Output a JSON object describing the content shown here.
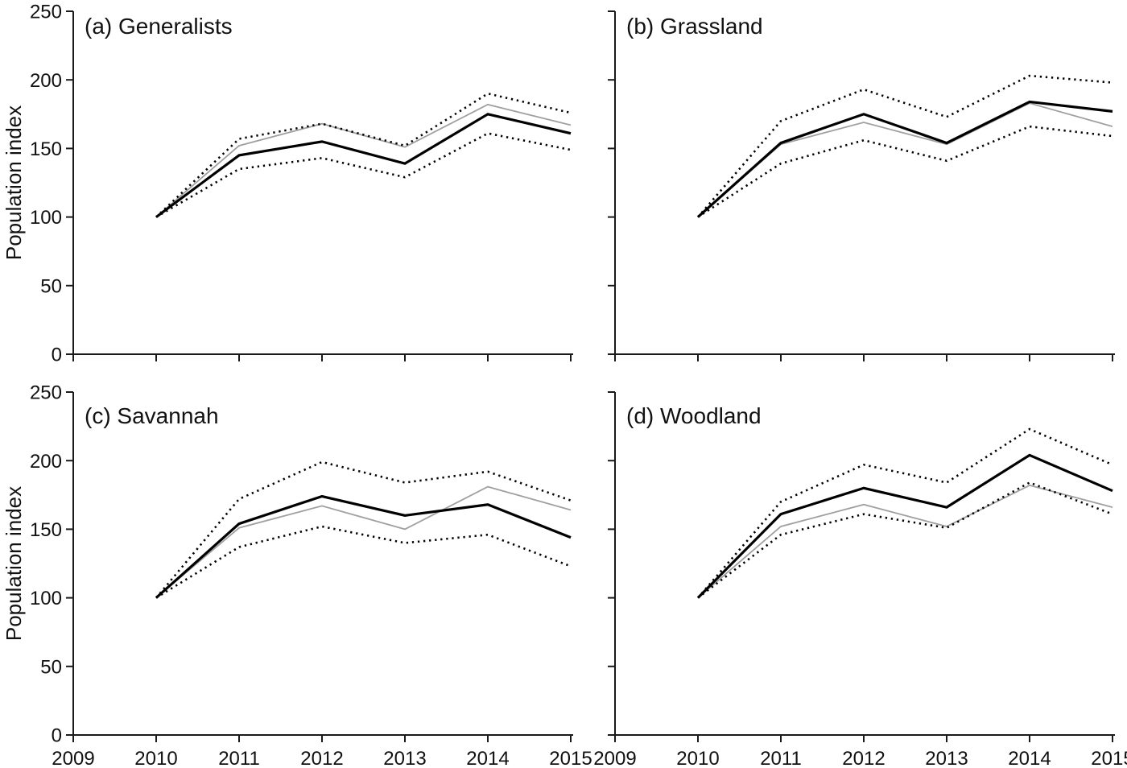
{
  "figure": {
    "background": "#ffffff",
    "axis_color": "#1a1a1a",
    "text_color": "#111111"
  },
  "chart_data": {
    "type": "line",
    "layout": "2x2-panels",
    "ylabel": "Population index",
    "xlabel": "",
    "x": [
      2010,
      2011,
      2012,
      2013,
      2014,
      2015
    ],
    "x_axis_ticks": [
      2009,
      2010,
      2011,
      2012,
      2013,
      2014,
      2015
    ],
    "y_axis_ticks": [
      0,
      50,
      100,
      150,
      200,
      250
    ],
    "xlim": [
      2009,
      2015
    ],
    "ylim": [
      0,
      250
    ],
    "grid": false,
    "legend": "none",
    "line_styles": {
      "solid-black": {
        "stroke": "#000000",
        "description": "thick solid black index line"
      },
      "solid-gray": {
        "stroke": "#a0a0a0",
        "description": "thin solid gray comparison line"
      },
      "dotted-black": {
        "stroke": "#000000",
        "description": "dotted black confidence-limit line"
      }
    },
    "panels": [
      {
        "id": "a",
        "title": "(a) Generalists",
        "series": [
          {
            "name": "population-index",
            "style": "solid-black",
            "values": [
              100,
              145,
              155,
              139,
              175,
              161
            ]
          },
          {
            "name": "comparison-index",
            "style": "solid-gray",
            "values": [
              100,
              152,
              168,
              151,
              182,
              167
            ]
          },
          {
            "name": "upper-confidence-limit",
            "style": "dotted-black",
            "values": [
              100,
              157,
              168,
              152,
              190,
              176
            ]
          },
          {
            "name": "lower-confidence-limit",
            "style": "dotted-black",
            "values": [
              100,
              135,
              143,
              129,
              161,
              149
            ]
          }
        ]
      },
      {
        "id": "b",
        "title": "(b) Grassland",
        "series": [
          {
            "name": "population-index",
            "style": "solid-black",
            "values": [
              100,
              154,
              175,
              154,
              184,
              177
            ]
          },
          {
            "name": "comparison-index",
            "style": "solid-gray",
            "values": [
              100,
              153,
              169,
              153,
              183,
              166
            ]
          },
          {
            "name": "upper-confidence-limit",
            "style": "dotted-black",
            "values": [
              100,
              170,
              193,
              173,
              203,
              198
            ]
          },
          {
            "name": "lower-confidence-limit",
            "style": "dotted-black",
            "values": [
              100,
              139,
              156,
              141,
              166,
              159
            ]
          }
        ]
      },
      {
        "id": "c",
        "title": "(c) Savannah",
        "series": [
          {
            "name": "population-index",
            "style": "solid-black",
            "values": [
              100,
              154,
              174,
              160,
              168,
              144
            ]
          },
          {
            "name": "comparison-index",
            "style": "solid-gray",
            "values": [
              100,
              151,
              167,
              150,
              181,
              164
            ]
          },
          {
            "name": "upper-confidence-limit",
            "style": "dotted-black",
            "values": [
              100,
              172,
              199,
              184,
              192,
              171
            ]
          },
          {
            "name": "lower-confidence-limit",
            "style": "dotted-black",
            "values": [
              100,
              137,
              152,
              140,
              146,
              123
            ]
          }
        ]
      },
      {
        "id": "d",
        "title": "(d) Woodland",
        "series": [
          {
            "name": "population-index",
            "style": "solid-black",
            "values": [
              100,
              161,
              180,
              166,
              204,
              178
            ]
          },
          {
            "name": "comparison-index",
            "style": "solid-gray",
            "values": [
              100,
              152,
              168,
              152,
              182,
              166
            ]
          },
          {
            "name": "upper-confidence-limit",
            "style": "dotted-black",
            "values": [
              100,
              170,
              197,
              184,
              223,
              197
            ]
          },
          {
            "name": "lower-confidence-limit",
            "style": "dotted-black",
            "values": [
              100,
              146,
              161,
              151,
              184,
              161
            ]
          }
        ]
      }
    ]
  }
}
